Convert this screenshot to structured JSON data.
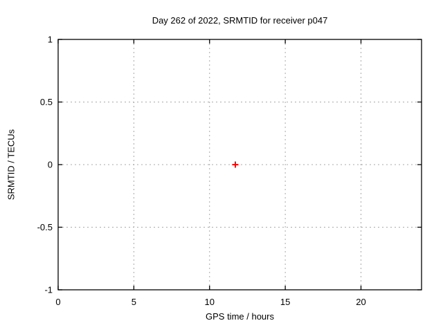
{
  "chart_data": {
    "type": "scatter",
    "title": "Day 262 of 2022, SRMTID for receiver p047",
    "xlabel": "GPS time / hours",
    "ylabel": "SRMTID / TECUs",
    "xlim": [
      0,
      24
    ],
    "ylim": [
      -1,
      1
    ],
    "xticks": [
      0,
      5,
      10,
      15,
      20
    ],
    "xtick_labels": [
      "0",
      "5",
      "10",
      "15",
      "20"
    ],
    "yticks": [
      -1,
      -0.5,
      0,
      0.5,
      1
    ],
    "ytick_labels": [
      "-1",
      "-0.5",
      "0",
      "0.5",
      "1"
    ],
    "grid": true,
    "legend_position": "none",
    "series": [
      {
        "name": "SRMTID",
        "marker": "plus",
        "color": "#ff0000",
        "points": [
          {
            "x": 11.7,
            "y": 0.0
          }
        ]
      }
    ]
  },
  "style": {
    "background": "#ffffff",
    "border_color": "#000000",
    "grid_color": "#a8a8a8",
    "text_color": "#000000",
    "marker_color": "#ff0000"
  }
}
